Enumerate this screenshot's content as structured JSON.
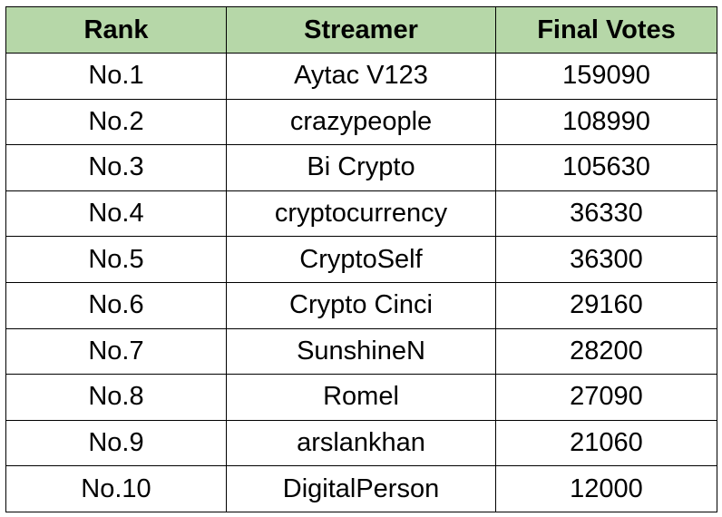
{
  "table": {
    "headers": [
      "Rank",
      "Streamer",
      "Final Votes"
    ],
    "rows": [
      {
        "rank": "No.1",
        "streamer": "Aytac V123",
        "votes": "159090"
      },
      {
        "rank": "No.2",
        "streamer": "crazypeople",
        "votes": "108990"
      },
      {
        "rank": "No.3",
        "streamer": "Bi Crypto",
        "votes": "105630"
      },
      {
        "rank": "No.4",
        "streamer": "cryptocurrency",
        "votes": "36330"
      },
      {
        "rank": "No.5",
        "streamer": "CryptoSelf",
        "votes": "36300"
      },
      {
        "rank": "No.6",
        "streamer": "Crypto Cinci",
        "votes": "29160"
      },
      {
        "rank": "No.7",
        "streamer": "SunshineN",
        "votes": "28200"
      },
      {
        "rank": "No.8",
        "streamer": "Romel",
        "votes": "27090"
      },
      {
        "rank": "No.9",
        "streamer": "arslankhan",
        "votes": "21060"
      },
      {
        "rank": "No.10",
        "streamer": "DigitalPerson",
        "votes": "12000"
      }
    ]
  },
  "colors": {
    "header_background": "#b6d7a8",
    "border": "#000000",
    "text": "#000000"
  }
}
